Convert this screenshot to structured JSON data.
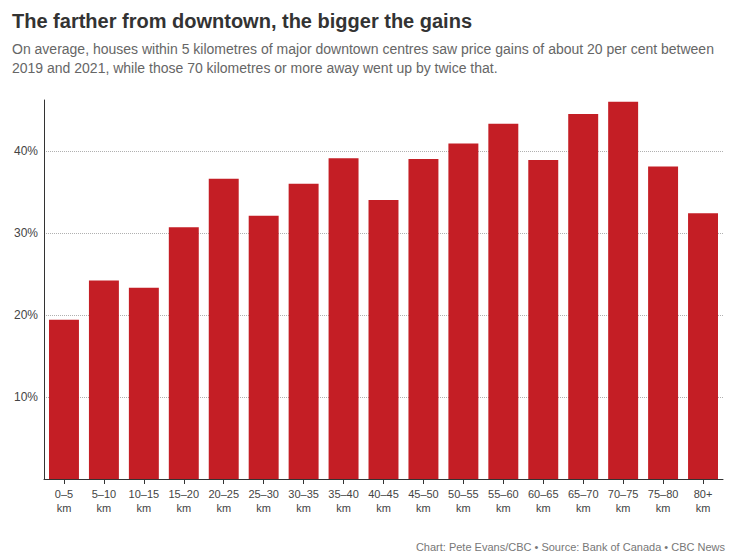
{
  "chart_data": {
    "type": "bar",
    "title": "The farther from downtown, the bigger the gains",
    "subtitle": "On average, houses within 5 kilometres of major downtown centres saw price gains of about 20 per cent between 2019 and 2021, while those 70 kilometres or more away went up by twice that.",
    "annotations": [
      "Chart: Pete Evans/CBC • Source: Bank of Canada • CBC News"
    ],
    "categories": [
      "0–5 km",
      "5–10 km",
      "10–15 km",
      "15–20 km",
      "20–25 km",
      "25–30 km",
      "30–35 km",
      "35–40 km",
      "40–45 km",
      "45–50 km",
      "50–55 km",
      "55–60 km",
      "60–65 km",
      "65–70 km",
      "70–75 km",
      "75–80 km",
      "80+ km"
    ],
    "values": [
      19.4,
      24.2,
      23.3,
      30.7,
      36.6,
      32.1,
      36.0,
      39.1,
      34.0,
      39.0,
      40.9,
      43.3,
      38.9,
      44.5,
      46.0,
      38.1,
      32.4
    ],
    "color": "#c41e25",
    "ylim": [
      0,
      46.2
    ],
    "yticks": [
      {
        "value": 10,
        "label": "10%"
      },
      {
        "value": 20,
        "label": "20%"
      },
      {
        "value": 30,
        "label": "30%"
      },
      {
        "value": 40,
        "label": "40%"
      }
    ],
    "grid": true
  }
}
